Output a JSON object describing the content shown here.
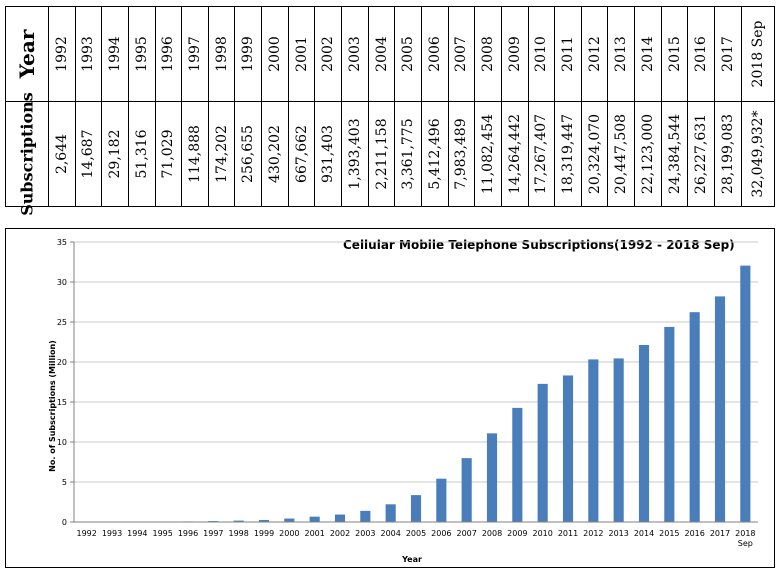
{
  "table": {
    "year_header": "Year",
    "subs_header": "Subscriptions",
    "years": [
      "1992",
      "1993",
      "1994",
      "1995",
      "1996",
      "1997",
      "1998",
      "1999",
      "2000",
      "2001",
      "2002",
      "2003",
      "2004",
      "2005",
      "2006",
      "2007",
      "2008",
      "2009",
      "2010",
      "2011",
      "2012",
      "2013",
      "2014",
      "2015",
      "2016",
      "2017",
      "2018 Sep"
    ],
    "subscriptions": [
      "2,644",
      "14,687",
      "29,182",
      "51,316",
      "71,029",
      "114,888",
      "174,202",
      "256,655",
      "430,202",
      "667,662",
      "931,403",
      "1,393,403",
      "2,211,158",
      "3,361,775",
      "5,412,496",
      "7,983,489",
      "11,082,454",
      "14,264,442",
      "17,267,407",
      "18,319,447",
      "20,324,070",
      "20,447,508",
      "22,123,000",
      "24,384,544",
      "26,227,631",
      "28,199,083",
      "32,049,932*"
    ]
  },
  "chart_data": {
    "type": "bar",
    "title": "Cellular Mobile Telephone Subscriptions(1992  - 2018 Sep)",
    "xlabel": "Year",
    "ylabel": "No. of Subscriptions (Million)",
    "ylim": [
      0,
      35
    ],
    "yticks": [
      "0",
      "5",
      "10",
      "15",
      "20",
      "25",
      "30",
      "35"
    ],
    "grid": true,
    "bar_color": "#4a7ebb",
    "categories": [
      "1992",
      "1993",
      "1994",
      "1995",
      "1996",
      "1997",
      "1998",
      "1999",
      "2000",
      "2001",
      "2002",
      "2003",
      "2004",
      "2005",
      "2006",
      "2007",
      "2008",
      "2009",
      "2010",
      "2011",
      "2012",
      "2013",
      "2014",
      "2015",
      "2016",
      "2017",
      "2018"
    ],
    "category_sublabels": {
      "2018": "Sep"
    },
    "values": [
      0.002644,
      0.014687,
      0.029182,
      0.051316,
      0.071029,
      0.114888,
      0.174202,
      0.256655,
      0.430202,
      0.667662,
      0.931403,
      1.393403,
      2.211158,
      3.361775,
      5.412496,
      7.983489,
      11.082454,
      14.264442,
      17.267407,
      18.319447,
      20.32407,
      20.447508,
      22.123,
      24.384544,
      26.227631,
      28.199083,
      32.049932
    ]
  }
}
